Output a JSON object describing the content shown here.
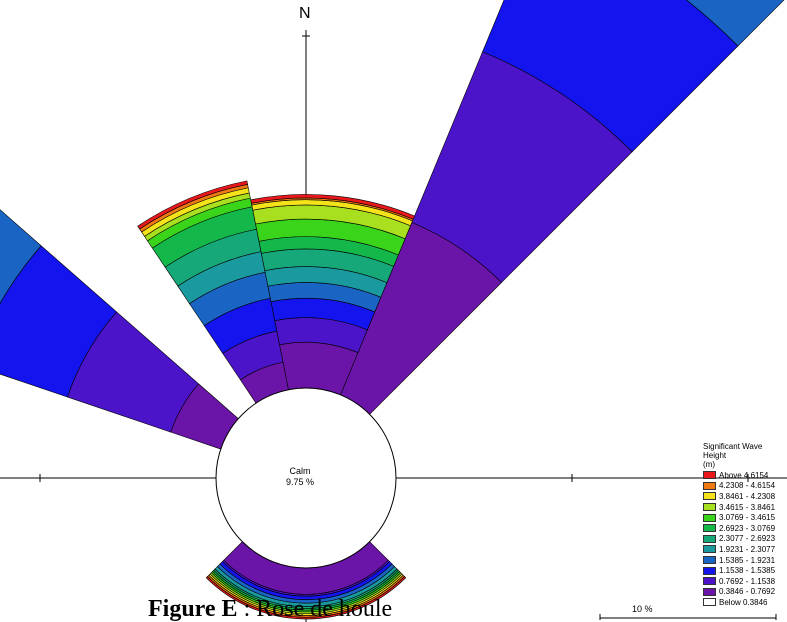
{
  "north_label": "N",
  "calm": {
    "label": "Calm",
    "value": "9.75 %"
  },
  "caption": {
    "figure": "Figure E",
    "text": " : Rose de houle"
  },
  "scale_label": "10 %",
  "legend": {
    "title": "Significant Wave Height",
    "unit": "(m)",
    "items": [
      {
        "label": "Above   4.6154",
        "color": "#e8181c"
      },
      {
        "label": "4.2308 - 4.6154",
        "color": "#f07a12"
      },
      {
        "label": "3.8461 - 4.2308",
        "color": "#f4e21a"
      },
      {
        "label": "3.4615 - 3.8461",
        "color": "#a8e020"
      },
      {
        "label": "3.0769 - 3.4615",
        "color": "#3ad41a"
      },
      {
        "label": "2.6923 - 3.0769",
        "color": "#14b84a"
      },
      {
        "label": "2.3077 - 2.6923",
        "color": "#16a878"
      },
      {
        "label": "1.9231 - 2.3077",
        "color": "#1a9a9e"
      },
      {
        "label": "1.5385 - 1.9231",
        "color": "#1a64c4"
      },
      {
        "label": "1.1538 - 1.5385",
        "color": "#1414ee"
      },
      {
        "label": "0.7692 - 1.1538",
        "color": "#4c14c8"
      },
      {
        "label": "0.3846 - 0.7692",
        "color": "#6a14a8"
      },
      {
        "label": "Below   0.3846",
        "color": "#ffffff"
      }
    ]
  },
  "chart_data": {
    "type": "rose",
    "title": "",
    "legend_title": "Significant Wave Height (m)",
    "calm_percent": 9.75,
    "ring_unit": "%",
    "scale_bar_percent": 10,
    "bins": [
      "0.3846 - 0.7692",
      "0.7692 - 1.1538",
      "1.1538 - 1.5385",
      "1.5385 - 1.9231",
      "1.9231 - 2.3077",
      "2.3077 - 2.6923",
      "2.6923 - 3.0769",
      "3.0769 - 3.4615",
      "3.4615 - 3.8461",
      "3.8461 - 4.2308",
      "4.2308 - 4.6154",
      "Above 4.6154"
    ],
    "sectors": [
      {
        "from_deg": 22.5,
        "to_deg": 45.0,
        "cumulative_percent": [
          10.6,
          21.1,
          29.6,
          33.9,
          36.3,
          38.6,
          39.7,
          40.4,
          40.8,
          41.0,
          41.2,
          41.5
        ]
      },
      {
        "from_deg": 348.75,
        "to_deg": 22.5,
        "cumulative_percent": [
          2.6,
          4.0,
          5.1,
          6.0,
          6.9,
          7.9,
          8.6,
          9.6,
          10.4,
          10.7,
          10.8,
          11.0
        ]
      },
      {
        "from_deg": 326.25,
        "to_deg": 348.75,
        "cumulative_percent": [
          1.6,
          3.4,
          5.3,
          6.8,
          8.0,
          9.3,
          10.6,
          11.1,
          11.4,
          11.7,
          11.9,
          12.1
        ]
      },
      {
        "from_deg": 288.75,
        "to_deg": 311.25,
        "cumulative_percent": [
          3.0,
          9.2,
          14.9,
          18.9,
          21.7,
          24.1,
          25.8,
          26.8,
          27.8,
          28.2,
          28.4,
          28.5
        ]
      },
      {
        "from_deg": 135.0,
        "to_deg": 225.0,
        "cumulative_percent": [
          1.5,
          1.6,
          1.8,
          2.0,
          2.2,
          2.3,
          2.4,
          2.5,
          2.6,
          2.7,
          2.8,
          2.9
        ]
      }
    ]
  }
}
